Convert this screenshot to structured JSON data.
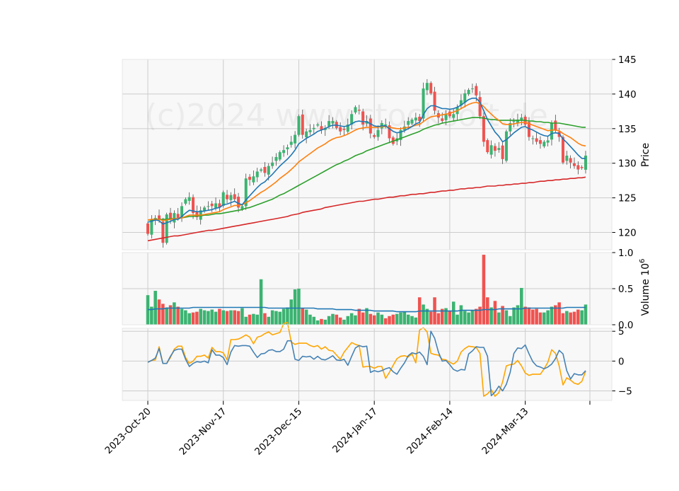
{
  "watermark": "(c)2024 www.stocksoft.de",
  "colors": {
    "up": "#3cb371",
    "down": "#ef5350",
    "ma_short": "#1f77b4",
    "ma_mid": "#ff7f0e",
    "ma_long": "#2ca02c",
    "ma_200": "#d62728",
    "osc_blue": "#4682b4",
    "osc_orange": "#ffa500",
    "panel_bg": "#f8f8f8",
    "grid": "#cccccc"
  },
  "chart_data": [
    {
      "type": "candlestick",
      "ylabel": "Price",
      "ylim": [
        117.5,
        145
      ],
      "yticks": [
        120,
        125,
        130,
        135,
        140,
        145
      ],
      "grid": true,
      "x_tick_labels": [
        "2023-Oct-20",
        "2023-Nov-17",
        "2023-Dec-15",
        "2024-Jan-17",
        "2024-Feb-14",
        "2024-Mar-13"
      ],
      "x_tick_index": [
        0,
        20,
        40,
        60,
        80,
        100
      ],
      "close": [
        119.8,
        121.8,
        122.1,
        121.8,
        118.5,
        122.6,
        121.8,
        122.8,
        122.1,
        123.8,
        124.8,
        125.1,
        122.8,
        122.2,
        123.2,
        123.6,
        123.8,
        123.8,
        124.2,
        123.6,
        125.8,
        124.8,
        125.4,
        124.8,
        123.6,
        123.8,
        127.8,
        127.6,
        128.1,
        128.8,
        129.1,
        128.6,
        129.6,
        130.1,
        130.9,
        131.6,
        131.9,
        132.3,
        133.1,
        134.1,
        136.8,
        134.1,
        134.6,
        134.8,
        135.1,
        135.6,
        134.8,
        135.1,
        136.1,
        136.1,
        135.1,
        134.6,
        134.8,
        135.6,
        137.1,
        138.1,
        137.6,
        135.6,
        136.1,
        134.3,
        133.8,
        134.8,
        135.8,
        135.6,
        133.6,
        132.8,
        133.6,
        134.8,
        135.3,
        136.1,
        136.3,
        136.6,
        136.1,
        140.8,
        141.6,
        140.1,
        137.6,
        136.6,
        136.1,
        137.1,
        136.8,
        137.1,
        138.1,
        139.1,
        140.1,
        140.6,
        140.8,
        139.8,
        136.8,
        133.1,
        131.6,
        132.6,
        131.8,
        132.2,
        130.6,
        134.6,
        135.8,
        136.1,
        136.3,
        136.6,
        135.6,
        133.8,
        133.6,
        133.1,
        132.8,
        133.1,
        133.3,
        135.8,
        134.8,
        133.8,
        130.1,
        131.1,
        130.1,
        129.6,
        129.1,
        129.3,
        131.1
      ],
      "ma_short": [
        121.5,
        121.6,
        121.8,
        121.7,
        121.2,
        121.4,
        121.6,
        121.9,
        121.9,
        122.3,
        122.8,
        123.2,
        123.1,
        123.0,
        123.0,
        123.1,
        123.2,
        123.3,
        123.5,
        123.6,
        124.0,
        124.1,
        124.3,
        124.5,
        124.2,
        124.0,
        124.7,
        125.3,
        125.9,
        126.5,
        127.0,
        127.3,
        127.9,
        128.4,
        129.0,
        129.6,
        130.1,
        130.6,
        131.2,
        131.9,
        132.8,
        133.2,
        133.6,
        133.9,
        134.2,
        134.6,
        134.8,
        135.0,
        135.3,
        135.5,
        135.5,
        135.4,
        135.3,
        135.4,
        135.7,
        136.0,
        136.1,
        136.0,
        136.0,
        135.7,
        135.4,
        135.3,
        135.4,
        135.4,
        135.0,
        134.6,
        134.4,
        134.5,
        134.7,
        135.0,
        135.3,
        135.7,
        135.9,
        137.0,
        137.9,
        138.3,
        138.3,
        138.1,
        137.9,
        137.9,
        137.8,
        137.9,
        138.1,
        138.4,
        138.8,
        139.2,
        139.4,
        139.4,
        138.8,
        137.6,
        136.3,
        135.4,
        134.5,
        133.9,
        133.1,
        133.4,
        133.9,
        134.4,
        134.8,
        135.2,
        135.3,
        135.0,
        134.8,
        134.5,
        134.2,
        134.0,
        133.9,
        134.3,
        134.4,
        134.3,
        133.5,
        133.0,
        132.4,
        131.8,
        131.2,
        130.7,
        130.7
      ],
      "ma_mid": [
        121.8,
        121.9,
        121.9,
        121.9,
        121.7,
        121.8,
        121.9,
        122.0,
        122.0,
        122.1,
        122.3,
        122.5,
        122.5,
        122.5,
        122.5,
        122.6,
        122.7,
        122.8,
        122.9,
        123.0,
        123.3,
        123.5,
        123.7,
        123.9,
        123.9,
        124.0,
        124.3,
        124.6,
        125.0,
        125.4,
        125.8,
        126.1,
        126.5,
        126.9,
        127.3,
        127.8,
        128.2,
        128.6,
        129.1,
        129.6,
        130.2,
        130.6,
        131.0,
        131.4,
        131.8,
        132.2,
        132.5,
        132.8,
        133.2,
        133.5,
        133.7,
        133.8,
        134.0,
        134.2,
        134.5,
        134.8,
        135.0,
        135.1,
        135.2,
        135.2,
        135.2,
        135.2,
        135.3,
        135.3,
        135.2,
        135.1,
        135.0,
        135.0,
        135.1,
        135.2,
        135.3,
        135.5,
        135.6,
        136.0,
        136.4,
        136.7,
        136.8,
        136.9,
        137.0,
        137.1,
        137.2,
        137.4,
        137.6,
        137.9,
        138.2,
        138.5,
        138.7,
        138.8,
        138.6,
        138.2,
        137.6,
        137.1,
        136.6,
        136.2,
        135.7,
        135.6,
        135.6,
        135.7,
        135.8,
        135.9,
        135.9,
        135.7,
        135.5,
        135.3,
        135.1,
        134.9,
        134.7,
        134.8,
        134.8,
        134.7,
        134.3,
        134.0,
        133.7,
        133.3,
        132.9,
        132.6,
        132.5
      ],
      "ma_long": [
        121.8,
        121.8,
        121.9,
        121.9,
        121.9,
        121.9,
        122.0,
        122.0,
        122.0,
        122.1,
        122.2,
        122.3,
        122.3,
        122.4,
        122.4,
        122.5,
        122.5,
        122.6,
        122.7,
        122.7,
        122.8,
        122.9,
        123.0,
        123.1,
        123.2,
        123.3,
        123.5,
        123.6,
        123.8,
        124.0,
        124.2,
        124.4,
        124.6,
        124.8,
        125.1,
        125.4,
        125.6,
        125.9,
        126.2,
        126.5,
        126.8,
        127.1,
        127.4,
        127.7,
        128.0,
        128.3,
        128.6,
        128.9,
        129.2,
        129.5,
        129.8,
        130.0,
        130.3,
        130.5,
        130.8,
        131.1,
        131.3,
        131.5,
        131.8,
        132.0,
        132.2,
        132.4,
        132.6,
        132.8,
        133.0,
        133.2,
        133.4,
        133.6,
        133.8,
        134.0,
        134.2,
        134.4,
        134.6,
        134.9,
        135.1,
        135.3,
        135.5,
        135.6,
        135.8,
        135.9,
        136.0,
        136.1,
        136.2,
        136.3,
        136.4,
        136.5,
        136.6,
        136.6,
        136.6,
        136.5,
        136.4,
        136.3,
        136.3,
        136.2,
        136.2,
        136.2,
        136.2,
        136.2,
        136.2,
        136.2,
        136.2,
        136.1,
        136.1,
        136.0,
        136.0,
        135.9,
        135.9,
        135.8,
        135.8,
        135.8,
        135.7,
        135.6,
        135.5,
        135.4,
        135.3,
        135.2,
        135.2
      ],
      "ma_200": [
        118.8,
        118.9,
        119.0,
        119.1,
        119.2,
        119.3,
        119.4,
        119.5,
        119.5,
        119.6,
        119.7,
        119.8,
        119.9,
        120.0,
        120.1,
        120.2,
        120.3,
        120.3,
        120.4,
        120.5,
        120.6,
        120.7,
        120.8,
        120.9,
        121.0,
        121.1,
        121.2,
        121.3,
        121.4,
        121.5,
        121.6,
        121.7,
        121.8,
        121.9,
        122.0,
        122.1,
        122.2,
        122.3,
        122.5,
        122.6,
        122.7,
        122.9,
        123.0,
        123.1,
        123.2,
        123.3,
        123.4,
        123.6,
        123.7,
        123.8,
        123.9,
        124.0,
        124.1,
        124.2,
        124.3,
        124.4,
        124.5,
        124.5,
        124.6,
        124.7,
        124.8,
        124.8,
        124.9,
        125.0,
        125.1,
        125.1,
        125.2,
        125.3,
        125.3,
        125.4,
        125.5,
        125.5,
        125.6,
        125.6,
        125.7,
        125.8,
        125.8,
        125.9,
        126.0,
        126.0,
        126.1,
        126.1,
        126.2,
        126.3,
        126.3,
        126.4,
        126.4,
        126.5,
        126.5,
        126.6,
        126.7,
        126.7,
        126.7,
        126.8,
        126.8,
        126.9,
        126.9,
        127.0,
        127.0,
        127.1,
        127.1,
        127.2,
        127.2,
        127.3,
        127.4,
        127.4,
        127.5,
        127.5,
        127.6,
        127.6,
        127.7,
        127.7,
        127.8,
        127.8,
        127.9,
        127.9,
        128.0
      ]
    },
    {
      "type": "bar",
      "ylabel": "Volume  10^6",
      "ylim": [
        0,
        1.0
      ],
      "yticks": [
        0.0,
        0.5,
        1.0
      ],
      "tick_labels": [
        "0.0",
        "0.5",
        "1.0"
      ],
      "volume": [
        0.41,
        0.25,
        0.47,
        0.35,
        0.29,
        0.24,
        0.27,
        0.31,
        0.25,
        0.22,
        0.2,
        0.16,
        0.17,
        0.18,
        0.22,
        0.2,
        0.19,
        0.21,
        0.18,
        0.22,
        0.2,
        0.19,
        0.2,
        0.2,
        0.19,
        0.23,
        0.11,
        0.14,
        0.15,
        0.14,
        0.63,
        0.16,
        0.11,
        0.2,
        0.19,
        0.18,
        0.22,
        0.24,
        0.35,
        0.49,
        0.5,
        0.23,
        0.21,
        0.14,
        0.11,
        0.06,
        0.08,
        0.07,
        0.12,
        0.15,
        0.14,
        0.1,
        0.07,
        0.12,
        0.16,
        0.13,
        0.22,
        0.17,
        0.23,
        0.15,
        0.13,
        0.17,
        0.14,
        0.09,
        0.12,
        0.14,
        0.15,
        0.17,
        0.18,
        0.14,
        0.12,
        0.1,
        0.38,
        0.28,
        0.22,
        0.18,
        0.38,
        0.16,
        0.22,
        0.23,
        0.19,
        0.32,
        0.14,
        0.27,
        0.19,
        0.17,
        0.2,
        0.22,
        0.25,
        0.97,
        0.38,
        0.24,
        0.33,
        0.17,
        0.26,
        0.2,
        0.12,
        0.24,
        0.27,
        0.51,
        0.25,
        0.24,
        0.21,
        0.22,
        0.17,
        0.17,
        0.2,
        0.25,
        0.27,
        0.31,
        0.16,
        0.19,
        0.17,
        0.18,
        0.21,
        0.2,
        0.28
      ],
      "avg_volume": [
        0.21,
        0.21,
        0.22,
        0.22,
        0.22,
        0.23,
        0.23,
        0.23,
        0.23,
        0.23,
        0.23,
        0.23,
        0.24,
        0.24,
        0.24,
        0.24,
        0.24,
        0.24,
        0.24,
        0.24,
        0.24,
        0.24,
        0.24,
        0.24,
        0.24,
        0.24,
        0.24,
        0.24,
        0.24,
        0.24,
        0.24,
        0.24,
        0.23,
        0.23,
        0.23,
        0.23,
        0.23,
        0.23,
        0.23,
        0.23,
        0.23,
        0.23,
        0.23,
        0.23,
        0.23,
        0.22,
        0.22,
        0.22,
        0.22,
        0.22,
        0.21,
        0.21,
        0.21,
        0.21,
        0.21,
        0.2,
        0.2,
        0.2,
        0.2,
        0.2,
        0.19,
        0.19,
        0.19,
        0.19,
        0.19,
        0.19,
        0.18,
        0.18,
        0.18,
        0.18,
        0.18,
        0.18,
        0.19,
        0.19,
        0.19,
        0.19,
        0.19,
        0.19,
        0.19,
        0.19,
        0.19,
        0.19,
        0.19,
        0.2,
        0.2,
        0.2,
        0.2,
        0.2,
        0.2,
        0.21,
        0.21,
        0.21,
        0.21,
        0.22,
        0.22,
        0.22,
        0.22,
        0.22,
        0.22,
        0.22,
        0.23,
        0.23,
        0.23,
        0.23,
        0.23,
        0.23,
        0.23,
        0.23,
        0.23,
        0.23,
        0.23,
        0.24,
        0.24,
        0.24,
        0.24,
        0.24,
        0.24
      ]
    },
    {
      "type": "line",
      "ylim": [
        -6.6,
        5.5
      ],
      "yticks": [
        -5,
        0,
        5
      ],
      "tick_labels": [
        "−5",
        "0",
        "5"
      ],
      "series": [
        {
          "values": [
            -0.2,
            0.1,
            0.5,
            2.1,
            -0.4,
            -0.4,
            0.8,
            1.8,
            2.0,
            2.0,
            0.3,
            -0.9,
            -0.4,
            -0.1,
            -0.2,
            0.0,
            -0.3,
            1.9,
            1.0,
            1.0,
            0.6,
            -0.6,
            1.5,
            2.6,
            2.5,
            2.6,
            2.6,
            2.5,
            1.5,
            0.6,
            1.2,
            1.3,
            1.8,
            1.9,
            1.6,
            1.6,
            2.0,
            3.4,
            3.4,
            0.3,
            0.1,
            0.8,
            0.7,
            0.8,
            0.3,
            0.8,
            0.3,
            0.2,
            0.5,
            0.9,
            0.2,
            0.1,
            0.3,
            -0.7,
            0.8,
            2.2,
            2.6,
            2.4,
            2.5,
            -1.9,
            -1.6,
            -1.8,
            -1.6,
            -1.3,
            -1.1,
            -1.8,
            -2.2,
            -1.2,
            -0.3,
            0.9,
            1.4,
            1.2,
            1.5,
            0.8,
            -0.6,
            5.0,
            3.8,
            1.5,
            0.0,
            0.1,
            -0.6,
            -1.4,
            -1.7,
            -1.4,
            -1.5,
            1.2,
            1.7,
            2.4,
            2.3,
            2.3,
            0.8,
            -5.8,
            -5.2,
            -4.2,
            -5.0,
            -3.9,
            -1.9,
            1.3,
            2.2,
            2.1,
            2.7,
            1.2,
            -0.1,
            -0.8,
            -1.0,
            -1.3,
            -1.0,
            -0.5,
            0.4,
            1.8,
            1.2,
            -1.6,
            -3.0,
            -2.1,
            -2.3,
            -2.3,
            -1.6
          ]
        },
        {
          "values": [
            -0.2,
            0.1,
            0.2,
            2.4,
            -0.4,
            -0.4,
            0.6,
            2.0,
            2.5,
            2.5,
            0.6,
            -0.4,
            0.0,
            0.8,
            0.8,
            1.0,
            0.5,
            2.3,
            1.6,
            1.6,
            1.4,
            0.2,
            3.6,
            3.6,
            3.7,
            4.0,
            4.4,
            4.0,
            2.9,
            4.0,
            4.2,
            4.6,
            4.9,
            4.4,
            4.6,
            4.8,
            6.3,
            6.5,
            3.2,
            2.8,
            3.0,
            3.0,
            3.0,
            2.6,
            2.4,
            2.6,
            2.0,
            2.4,
            1.8,
            1.7,
            1.0,
            0.3,
            1.5,
            2.3,
            3.1,
            2.8,
            2.6,
            -1.0,
            -0.9,
            -0.9,
            -1.2,
            -0.9,
            -0.9,
            -2.9,
            -1.9,
            -0.7,
            0.4,
            0.8,
            0.9,
            0.7,
            1.2,
            -0.3,
            5.2,
            5.6,
            4.9,
            1.3,
            1.1,
            1.0,
            0.3,
            0.2,
            -0.2,
            -0.5,
            0.0,
            1.5,
            2.1,
            2.5,
            2.4,
            2.3,
            1.3,
            -5.9,
            -5.5,
            -4.8,
            -5.9,
            -5.3,
            -3.5,
            -0.8,
            -0.6,
            -0.5,
            0.1,
            -0.8,
            -2.0,
            -2.4,
            -2.2,
            -2.2,
            -2.2,
            -1.3,
            -0.2,
            1.9,
            1.3,
            -0.8,
            -4.0,
            -2.8,
            -3.2,
            -3.7,
            -3.9,
            -3.4,
            -1.7
          ]
        }
      ]
    }
  ]
}
